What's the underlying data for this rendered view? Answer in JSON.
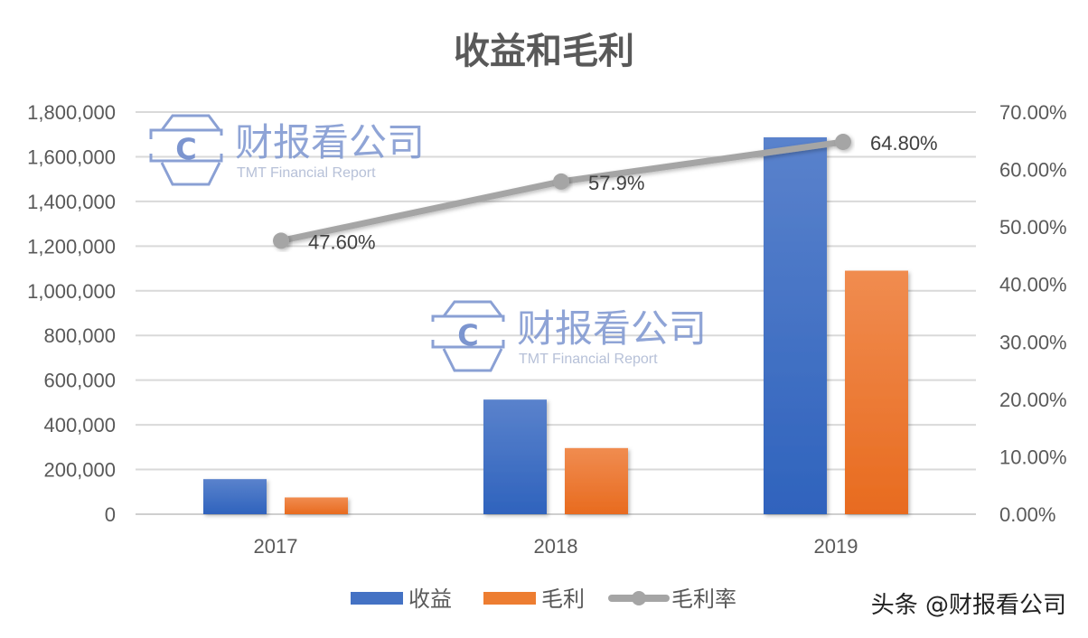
{
  "chart_data": {
    "type": "bar",
    "combo": "bar+line (secondary axis)",
    "title": "收益和毛利",
    "categories": [
      "2017",
      "2018",
      "2019"
    ],
    "series": [
      {
        "name": "收益",
        "type": "bar",
        "axis": "left",
        "color": "#4472C4",
        "values": [
          157000,
          513000,
          1687000
        ]
      },
      {
        "name": "毛利",
        "type": "bar",
        "axis": "left",
        "color": "#ED7D31",
        "values": [
          75000,
          296000,
          1090000
        ]
      },
      {
        "name": "毛利率",
        "type": "line",
        "axis": "right",
        "color": "#A5A5A5",
        "values": [
          47.6,
          57.9,
          64.8
        ],
        "data_labels": [
          "47.60%",
          "57.9%",
          "64.80%"
        ]
      }
    ],
    "xlabel": "",
    "ylabel": "",
    "ylim": [
      0,
      1800000
    ],
    "y_ticks": [
      "0",
      "200,000",
      "400,000",
      "600,000",
      "800,000",
      "1,000,000",
      "1,200,000",
      "1,400,000",
      "1,600,000",
      "1,800,000"
    ],
    "y2lim": [
      0,
      70
    ],
    "y2_ticks": [
      "0.00%",
      "10.00%",
      "20.00%",
      "30.00%",
      "40.00%",
      "50.00%",
      "60.00%",
      "70.00%"
    ],
    "grid": true,
    "legend_position": "bottom"
  },
  "legend": [
    {
      "label": "收益",
      "color": "#4472C4",
      "kind": "bar"
    },
    {
      "label": "毛利",
      "color": "#ED7D31",
      "kind": "bar"
    },
    {
      "label": "毛利率",
      "color": "#A5A5A5",
      "kind": "line"
    }
  ],
  "watermark": {
    "cn": "财报看公司",
    "en": "TMT Financial Report",
    "logo_letter": "C"
  },
  "credit": "头条 @财报看公司"
}
